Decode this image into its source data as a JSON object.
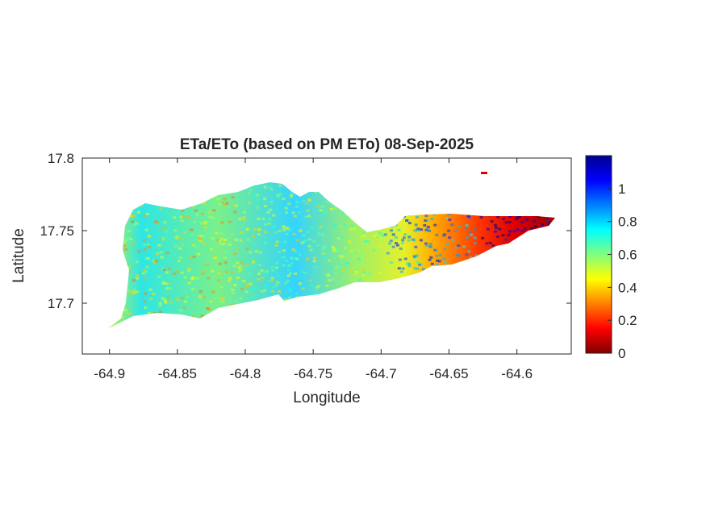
{
  "title": "ETa/ETo (based on PM ETo) 08-Sep-2025",
  "xlabel": "Longitude",
  "ylabel": "Latitude",
  "colors": {
    "axis": "#262626",
    "background": "#ffffff",
    "colormap": "jet"
  },
  "chart_data": {
    "type": "heatmap",
    "title": "ETa/ETo (based on PM ETo) 08-Sep-2025",
    "xlabel": "Longitude",
    "ylabel": "Latitude",
    "xlim": [
      -64.92,
      -64.56
    ],
    "ylim": [
      17.665,
      17.8
    ],
    "x_ticks": [
      -64.9,
      -64.85,
      -64.8,
      -64.75,
      -64.7,
      -64.65,
      -64.6
    ],
    "x_tick_labels": [
      "-64.9",
      "-64.85",
      "-64.8",
      "-64.75",
      "-64.7",
      "-64.65",
      "-64.6"
    ],
    "y_ticks": [
      17.7,
      17.75,
      17.8
    ],
    "y_tick_labels": [
      "17.7",
      "17.75",
      "17.8"
    ],
    "colorbar": {
      "colormap": "jet",
      "clim": [
        0,
        1.2
      ],
      "ticks": [
        0,
        0.2,
        0.4,
        0.6,
        0.8,
        1
      ],
      "tick_labels": [
        "0",
        "0.2",
        "0.4",
        "0.6",
        "0.8",
        "1"
      ]
    },
    "grid": false,
    "value_regions": [
      {
        "region": "west",
        "lon_range": [
          -64.9,
          -64.8
        ],
        "typical_value": 0.75
      },
      {
        "region": "central",
        "lon_range": [
          -64.8,
          -64.7
        ],
        "typical_value": 0.65
      },
      {
        "region": "east",
        "lon_range": [
          -64.7,
          -64.63
        ],
        "typical_value": 0.3
      },
      {
        "region": "east-tip",
        "lon_range": [
          -64.63,
          -64.57
        ],
        "typical_value": 0.05
      }
    ]
  }
}
